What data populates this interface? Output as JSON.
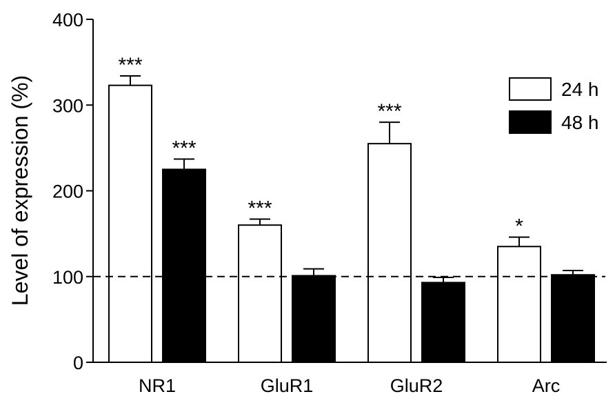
{
  "chart_data": {
    "type": "bar",
    "categories": [
      "NR1",
      "GluR1",
      "GluR2",
      "Arc"
    ],
    "series": [
      {
        "name": "24 h",
        "values": [
          323,
          160,
          255,
          135
        ],
        "errors": [
          11,
          7,
          25,
          11
        ],
        "significance": [
          "***",
          "***",
          "***",
          "*"
        ],
        "fill": "#ffffff"
      },
      {
        "name": "48 h",
        "values": [
          225,
          101,
          93,
          102
        ],
        "errors": [
          12,
          8,
          6,
          5
        ],
        "significance": [
          "***",
          "",
          "",
          ""
        ],
        "fill": "#000000"
      }
    ],
    "ylabel": "Level of expression (%)",
    "ylim": [
      0,
      400
    ],
    "yticks": [
      0,
      100,
      200,
      300,
      400
    ],
    "reference_line": 100,
    "legend_position": "top-right",
    "grid": false
  }
}
